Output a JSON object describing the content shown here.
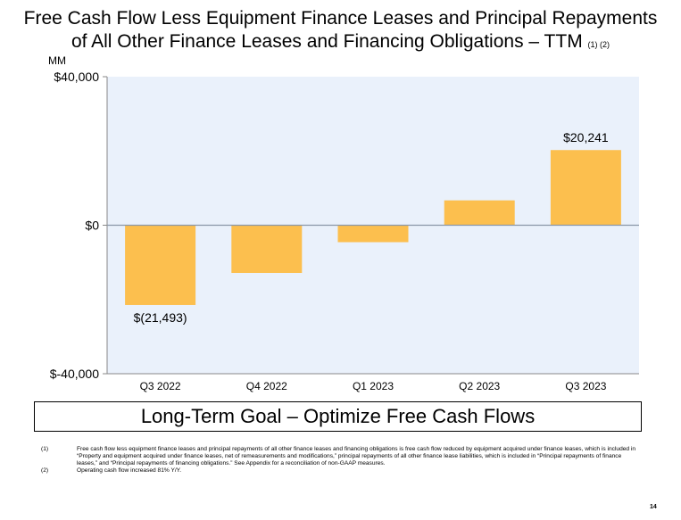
{
  "title_line1": "Free Cash Flow Less Equipment Finance Leases and Principal Repayments",
  "title_line2": "of All Other Finance Leases and Financing Obligations – TTM",
  "title_footnote_refs": "(1) (2)",
  "chart_data": {
    "type": "bar",
    "unit_label": "MM",
    "categories": [
      "Q3 2022",
      "Q4 2022",
      "Q1 2023",
      "Q2 2023",
      "Q3 2023"
    ],
    "values": [
      -21493,
      -12852,
      -4568,
      6693,
      20241
    ],
    "data_labels": [
      "$(21,493)",
      "",
      "",
      "",
      "$20,241"
    ],
    "yticks": [
      {
        "value": 40000,
        "label": "$40,000"
      },
      {
        "value": 0,
        "label": "$0"
      },
      {
        "value": -40000,
        "label": "$-40,000"
      }
    ],
    "ylim": [
      -40000,
      40000
    ],
    "grid": false,
    "colors": {
      "bar": "#FCBF4E",
      "plot_bg": "#EAF1FB",
      "zero_line": "#8A96A8",
      "axis": "#888888"
    }
  },
  "goal_text": "Long-Term Goal – Optimize Free Cash Flows",
  "footnotes": [
    {
      "num": "(1)",
      "text": "Free cash flow less equipment finance leases and principal repayments of all other finance leases and financing obligations is free cash flow reduced by equipment acquired under finance leases, which is included in “Property and equipment acquired under finance leases, net of remeasurements and modifications,” principal repayments of all other finance lease liabilities, which is included in “Principal repayments of finance leases,” and “Principal repayments of financing obligations.” See Appendix for a reconciliation of non-GAAP measures."
    },
    {
      "num": "(2)",
      "text": "Operating cash flow increased 81% Y/Y."
    }
  ],
  "page_number": "14"
}
